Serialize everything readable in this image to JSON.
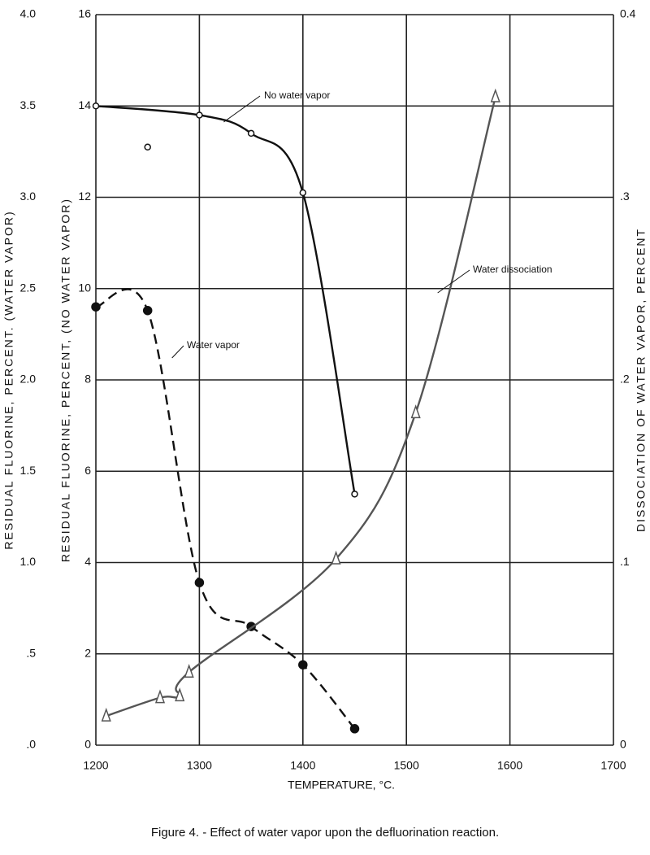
{
  "chart_data": {
    "type": "line",
    "title": "Figure 4. - Effect of water vapor upon the defluorination reaction.",
    "x_label": "TEMPERATURE, °C.",
    "y3_label": "RESIDUAL FLUORINE, PERCENT. (WATER VAPOR)",
    "y_label": "RESIDUAL FLUORINE, PERCENT, (NO WATER VAPOR)",
    "y2_label": "DISSOCIATION OF WATER VAPOR, PERCENT",
    "xlim": [
      1200,
      1700
    ],
    "xticks": [
      1200,
      1300,
      1400,
      1500,
      1600,
      1700
    ],
    "ylim": [
      0,
      16
    ],
    "yticks": [
      0,
      2,
      4,
      6,
      8,
      10,
      12,
      14,
      16
    ],
    "y2lim": [
      0,
      0.4
    ],
    "y2ticks": [
      0,
      {
        "value": 0.1,
        "label": ".1"
      },
      {
        "value": 0.2,
        "label": ".2"
      },
      {
        "value": 0.3,
        "label": ".3"
      },
      0.4
    ],
    "y3lim": [
      0,
      4
    ],
    "y3ticks": [
      {
        "value": 0,
        "label": ".0"
      },
      {
        "value": 0.5,
        "label": ".5"
      },
      {
        "value": 1,
        "label": "1.0"
      },
      {
        "value": 1.5,
        "label": "1.5"
      },
      {
        "value": 2,
        "label": "2.0"
      },
      {
        "value": 2.5,
        "label": "2.5"
      },
      {
        "value": 3,
        "label": "3.0"
      },
      {
        "value": 3.5,
        "label": "3.5"
      },
      {
        "value": 4,
        "label": "4.0"
      }
    ],
    "grid": true,
    "series": [
      {
        "name": "No water vapor",
        "color": "#111111",
        "axis": "y",
        "marker": "open-circle",
        "line": true,
        "x": [
          1200,
          1300,
          1350,
          1400,
          1450
        ],
        "values": [
          14,
          13.8,
          13.4,
          12.1,
          5.5
        ]
      },
      {
        "color": "#111111",
        "axis": "y",
        "marker": "open-circle",
        "line": false,
        "x": [
          1250
        ],
        "values": [
          13.1
        ]
      },
      {
        "name": "Water vapor",
        "color": "#111111",
        "axis": "y3",
        "marker": "filled-circle",
        "line": true,
        "dash": true,
        "x": [
          1200,
          1250,
          1300,
          1350,
          1400,
          1450
        ],
        "values": [
          2.4,
          2.38,
          0.89,
          0.65,
          0.44,
          0.09
        ]
      },
      {
        "name": "Water dissociation",
        "color": "#555555",
        "axis": "y2",
        "marker": "triangle",
        "line": true,
        "x": [
          1210,
          1262,
          1281,
          1290,
          1432,
          1509,
          1586
        ],
        "values": [
          0.016,
          0.026,
          0.027,
          0.04,
          0.102,
          0.182,
          0.355
        ]
      }
    ]
  }
}
